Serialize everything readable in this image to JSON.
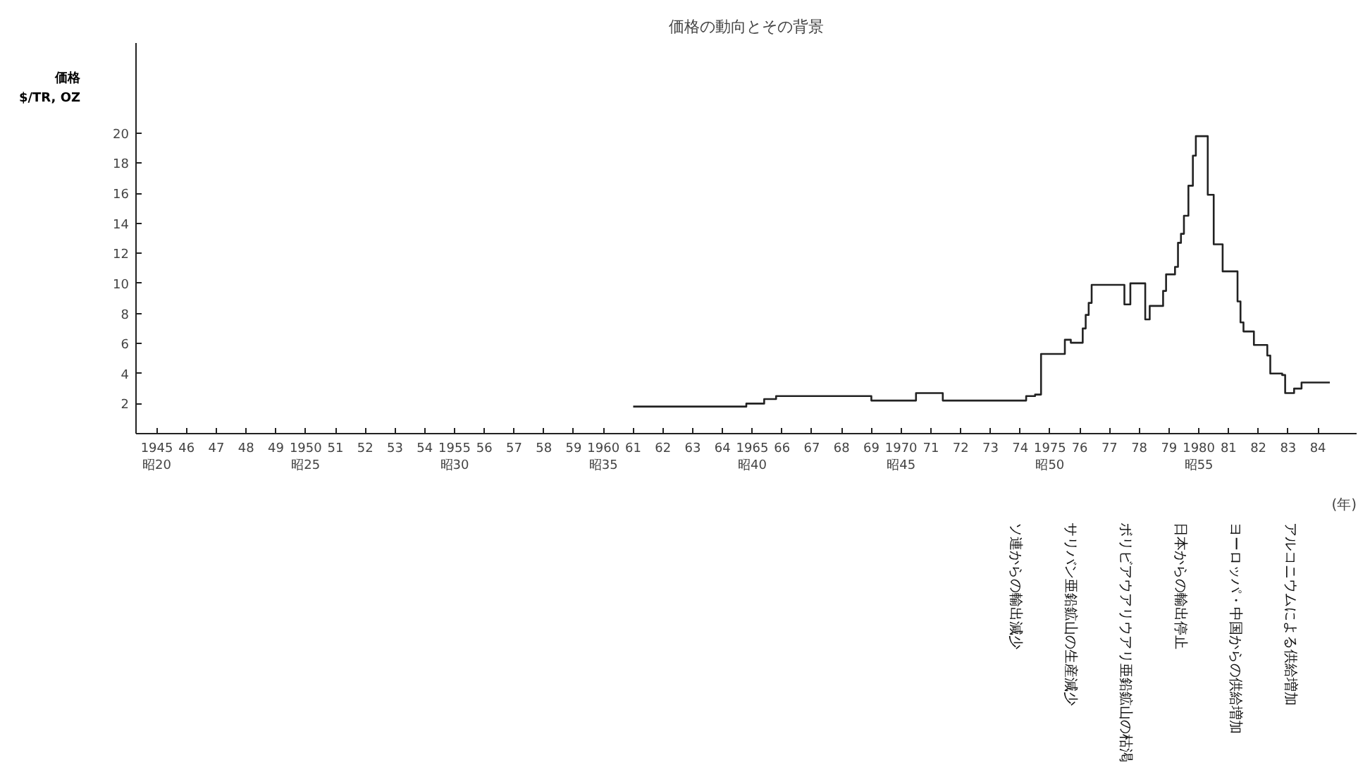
{
  "chart_data": {
    "type": "step",
    "title": "価格の動向とその背景",
    "ylabel": "価格\n$/TR, OZ",
    "xlabel": "(年)",
    "x": [
      1961.0,
      1964.8,
      1965.4,
      1965.8,
      1969.0,
      1970.5,
      1971.4,
      1974.2,
      1974.5,
      1974.7,
      1975.5,
      1975.7,
      1976.1,
      1976.2,
      1976.3,
      1976.4,
      1977.5,
      1977.7,
      1978.2,
      1978.35,
      1978.8,
      1978.9,
      1979.2,
      1979.3,
      1979.4,
      1979.5,
      1979.65,
      1979.8,
      1979.9,
      1980.3,
      1980.5,
      1980.8,
      1981.3,
      1981.4,
      1981.5,
      1981.85,
      1982.3,
      1982.4,
      1982.8,
      1982.9,
      1983.2,
      1983.45,
      1984.4
    ],
    "series": [
      {
        "color": "#222222",
        "values": [
          1.8,
          2.0,
          2.3,
          2.5,
          2.2,
          2.7,
          2.2,
          2.5,
          2.6,
          5.3,
          6.25,
          6.05,
          7.0,
          7.9,
          8.7,
          9.9,
          8.6,
          10.0,
          7.6,
          8.5,
          9.5,
          10.6,
          11.1,
          12.7,
          13.3,
          14.5,
          16.5,
          18.5,
          19.8,
          15.9,
          12.6,
          10.8,
          8.8,
          7.4,
          6.8,
          5.9,
          5.2,
          4.0,
          3.9,
          2.7,
          3.0,
          3.4,
          3.4
        ]
      }
    ],
    "xlim": [
      1944.3,
      1985.3
    ],
    "ylim": [
      0,
      26
    ],
    "yticks": [
      2,
      4,
      6,
      8,
      10,
      12,
      14,
      16,
      18,
      20
    ],
    "xticks": [
      {
        "value": 1945,
        "label": "1945\n昭20"
      },
      {
        "value": 1946,
        "label": "46"
      },
      {
        "value": 1947,
        "label": "47"
      },
      {
        "value": 1948,
        "label": "48"
      },
      {
        "value": 1949,
        "label": "49"
      },
      {
        "value": 1950,
        "label": "1950\n昭25"
      },
      {
        "value": 1951,
        "label": "51"
      },
      {
        "value": 1952,
        "label": "52"
      },
      {
        "value": 1953,
        "label": "53"
      },
      {
        "value": 1954,
        "label": "54"
      },
      {
        "value": 1955,
        "label": "1955\n昭30"
      },
      {
        "value": 1956,
        "label": "56"
      },
      {
        "value": 1957,
        "label": "57"
      },
      {
        "value": 1958,
        "label": "58"
      },
      {
        "value": 1959,
        "label": "59"
      },
      {
        "value": 1960,
        "label": "1960\n昭35"
      },
      {
        "value": 1961,
        "label": "61"
      },
      {
        "value": 1962,
        "label": "62"
      },
      {
        "value": 1963,
        "label": "63"
      },
      {
        "value": 1964,
        "label": "64"
      },
      {
        "value": 1965,
        "label": "1965\n昭40"
      },
      {
        "value": 1966,
        "label": "66"
      },
      {
        "value": 1967,
        "label": "67"
      },
      {
        "value": 1968,
        "label": "68"
      },
      {
        "value": 1969,
        "label": "69"
      },
      {
        "value": 1970,
        "label": "1970\n昭45"
      },
      {
        "value": 1971,
        "label": "71"
      },
      {
        "value": 1972,
        "label": "72"
      },
      {
        "value": 1973,
        "label": "73"
      },
      {
        "value": 1974,
        "label": "74"
      },
      {
        "value": 1975,
        "label": "1975\n昭50"
      },
      {
        "value": 1976,
        "label": "76"
      },
      {
        "value": 1977,
        "label": "77"
      },
      {
        "value": 1978,
        "label": "78"
      },
      {
        "value": 1979,
        "label": "79"
      },
      {
        "value": 1980,
        "label": "1980\n昭55"
      },
      {
        "value": 1981,
        "label": "81"
      },
      {
        "value": 1982,
        "label": "82"
      },
      {
        "value": 1983,
        "label": "83"
      },
      {
        "value": 1984,
        "label": "84"
      }
    ],
    "annotations": [
      "ソ連からの輸出減少",
      "サリバン亜鉛鉱山の生産減少",
      "ボリビアウアリウアリ亜鉛鉱山の枯渇",
      "日本からの輸出停止",
      "ヨーロッパ・中国からの供給増加",
      "アルコニウムによる供給増加"
    ]
  }
}
